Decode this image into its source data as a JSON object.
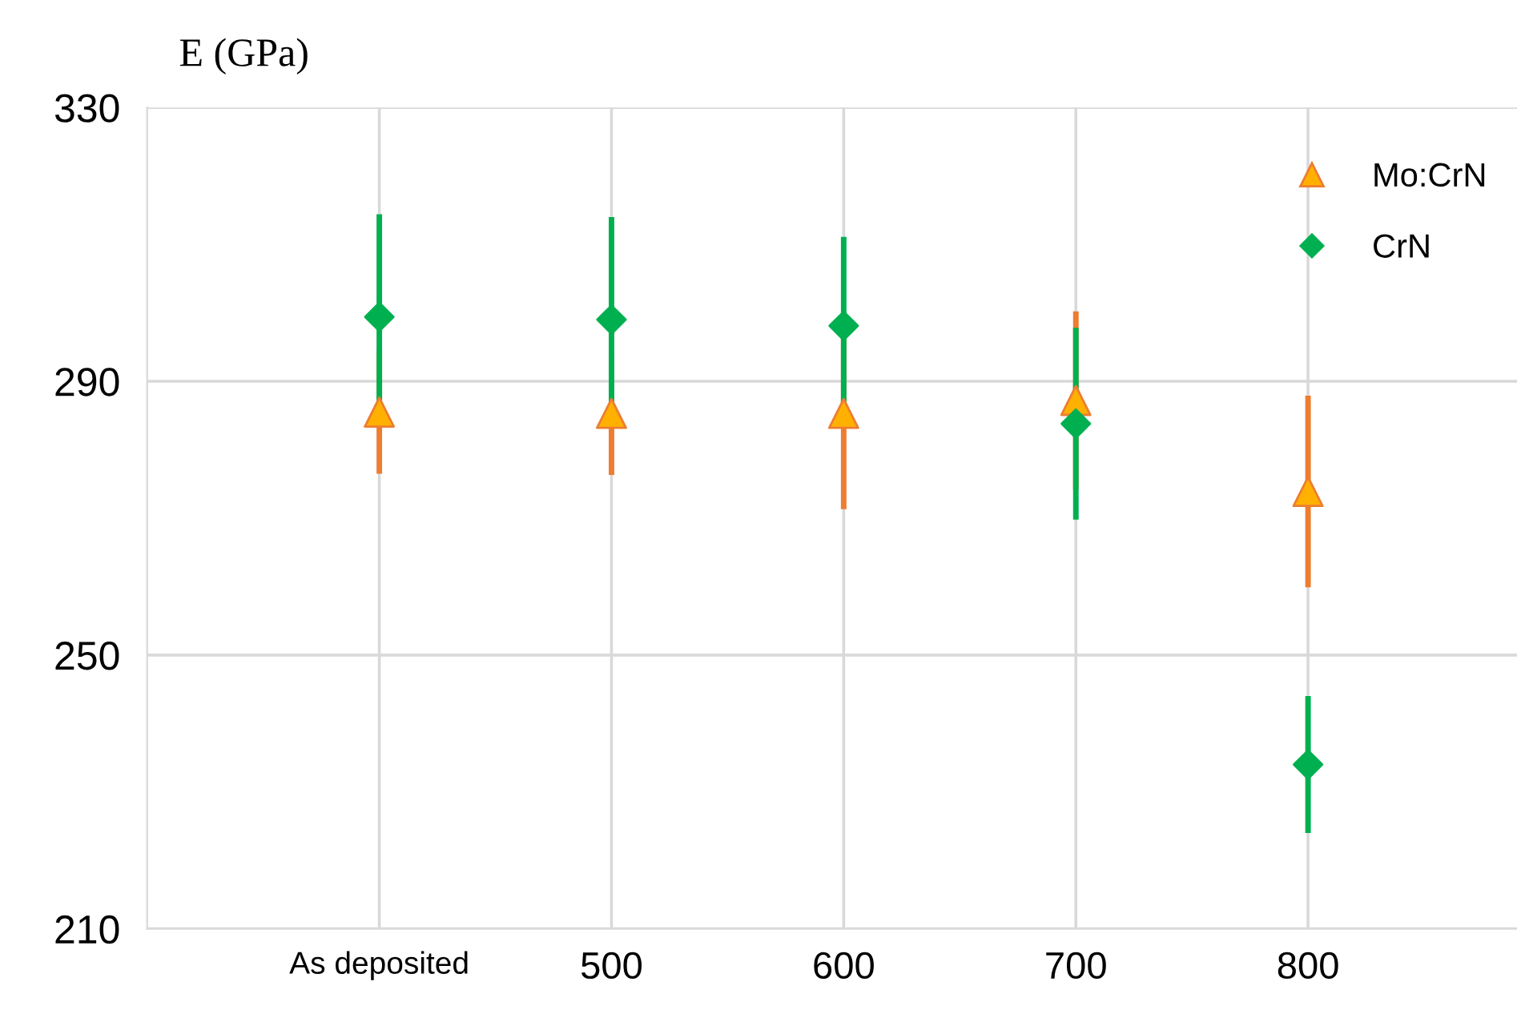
{
  "chart_data": {
    "type": "scatter",
    "ylabel": "E (GPa)",
    "categories": [
      "As deposited",
      "500",
      "600",
      "700",
      "800"
    ],
    "series": [
      {
        "name": "Mo:CrN",
        "color": "#ffb000",
        "marker": "triangle",
        "values": [
          285.5,
          285.3,
          285.3,
          287.2,
          273.9
        ],
        "errors": [
          9,
          9,
          14,
          13,
          14
        ]
      },
      {
        "name": "CrN",
        "color": "#00b050",
        "marker": "diamond",
        "values": [
          299.4,
          299.0,
          298.1,
          283.8,
          234.0
        ],
        "errors": [
          15,
          15,
          13,
          14,
          10
        ]
      }
    ],
    "ylim": [
      210,
      330
    ],
    "yticks": [
      210,
      250,
      290,
      330
    ],
    "grid": true,
    "legend": "top right"
  }
}
